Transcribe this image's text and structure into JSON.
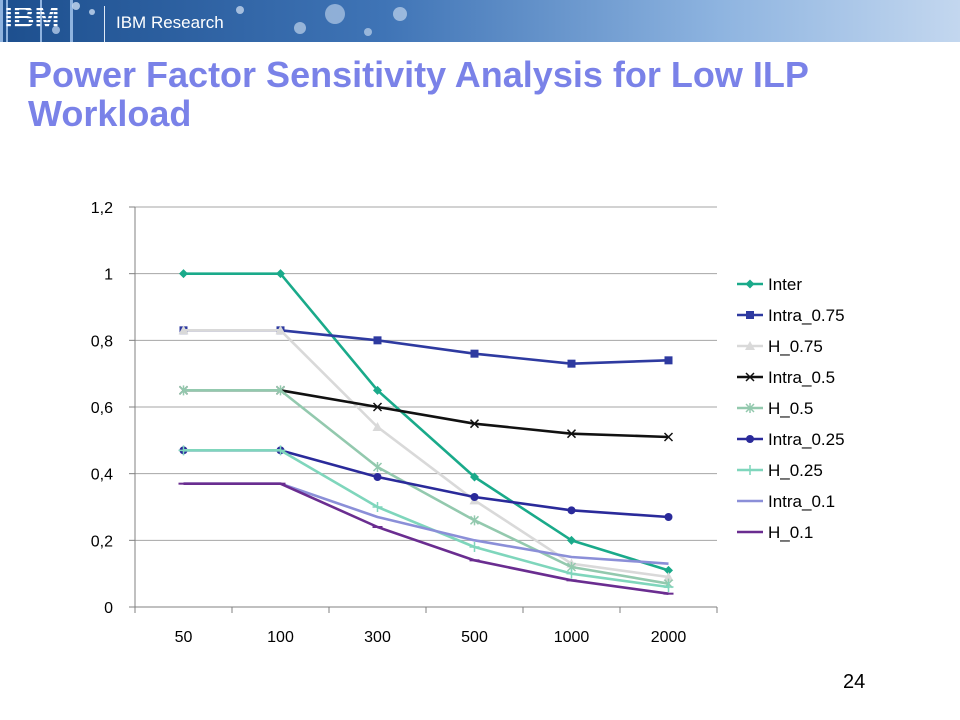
{
  "header": {
    "brand_label": "IBM Research",
    "logo_text": "IBM",
    "banner_color": "#3f74b6"
  },
  "slide": {
    "title": "Power Factor Sensitivity Analysis for Low ILP Workload",
    "page_number": "24",
    "title_color": "#7a82e8"
  },
  "chart_data": {
    "type": "line",
    "title": "",
    "xlabel": "",
    "ylabel": "",
    "categories": [
      "50",
      "100",
      "300",
      "500",
      "1000",
      "2000"
    ],
    "y_ticks": [
      "0",
      "0,2",
      "0,4",
      "0,6",
      "0,8",
      "1",
      "1,2"
    ],
    "ylim": [
      0,
      1.2
    ],
    "grid": "horizontal",
    "legend_position": "right",
    "series": [
      {
        "name": "Inter",
        "color": "#1aaa8a",
        "marker": "diamond",
        "values": [
          1.0,
          1.0,
          0.65,
          0.39,
          0.2,
          0.11
        ]
      },
      {
        "name": "Intra_0.75",
        "color": "#2e3aa0",
        "marker": "square",
        "values": [
          0.83,
          0.83,
          0.8,
          0.76,
          0.73,
          0.74
        ]
      },
      {
        "name": "H_0.75",
        "color": "#d9d9d9",
        "marker": "triangle",
        "values": [
          0.83,
          0.83,
          0.54,
          0.32,
          0.13,
          0.09
        ]
      },
      {
        "name": "Intra_0.5",
        "color": "#111111",
        "marker": "x",
        "values": [
          0.65,
          0.65,
          0.6,
          0.55,
          0.52,
          0.51
        ]
      },
      {
        "name": "H_0.5",
        "color": "#93c9ae",
        "marker": "star",
        "values": [
          0.65,
          0.65,
          0.42,
          0.26,
          0.12,
          0.07
        ]
      },
      {
        "name": "Intra_0.25",
        "color": "#2a2a9a",
        "marker": "circle",
        "values": [
          0.47,
          0.47,
          0.39,
          0.33,
          0.29,
          0.27
        ]
      },
      {
        "name": "H_0.25",
        "color": "#7fd6bc",
        "marker": "plus",
        "values": [
          0.47,
          0.47,
          0.3,
          0.18,
          0.1,
          0.06
        ]
      },
      {
        "name": "Intra_0.1",
        "color": "#8b8fd8",
        "marker": "none",
        "values": [
          0.37,
          0.37,
          0.27,
          0.2,
          0.15,
          0.13
        ]
      },
      {
        "name": "H_0.1",
        "color": "#6a2d90",
        "marker": "dash",
        "values": [
          0.37,
          0.37,
          0.24,
          0.14,
          0.08,
          0.04
        ]
      }
    ]
  }
}
